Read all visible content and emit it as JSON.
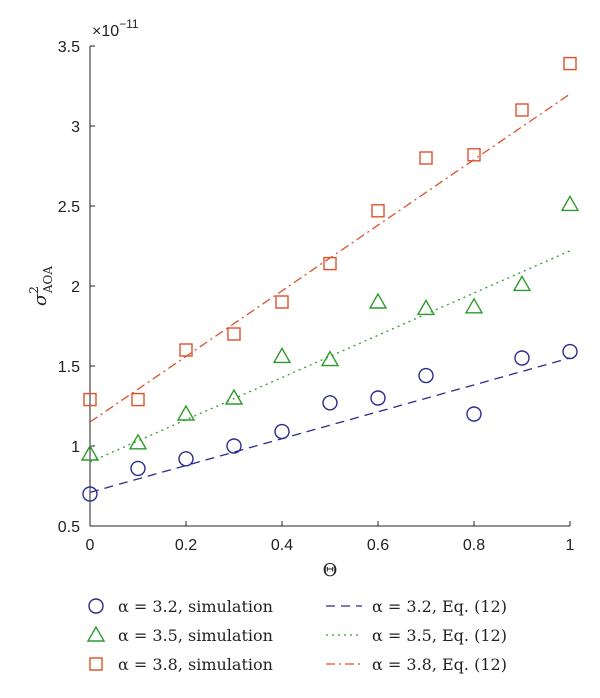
{
  "chart_data": {
    "type": "scatter",
    "multiplier": "×10",
    "multiplier_exp": "−11",
    "xlabel": "Θ",
    "ylabel_base": "σ",
    "ylabel_sup": "2",
    "ylabel_sub": "AOA",
    "xlim": [
      0,
      1
    ],
    "ylim": [
      0.5,
      3.5
    ],
    "xticks": [
      0,
      0.2,
      0.4,
      0.6,
      0.8,
      1
    ],
    "xtick_labels": [
      "0",
      "0.2",
      "0.4",
      "0.6",
      "0.8",
      "1"
    ],
    "yticks": [
      0.5,
      1,
      1.5,
      2,
      2.5,
      3,
      3.5
    ],
    "ytick_labels": [
      "0.5",
      "1",
      "1.5",
      "2",
      "2.5",
      "3",
      "3.5"
    ],
    "grid": false,
    "legend_position": "bottom",
    "series": [
      {
        "name": "α = 3.2, simulation",
        "kind": "markers",
        "marker": "circle",
        "color": "#2b2b8f",
        "x": [
          0,
          0.1,
          0.2,
          0.3,
          0.4,
          0.5,
          0.6,
          0.7,
          0.8,
          0.9,
          1.0
        ],
        "y": [
          0.7,
          0.86,
          0.92,
          1.0,
          1.09,
          1.27,
          1.3,
          1.44,
          1.2,
          1.55,
          1.59
        ]
      },
      {
        "name": "α = 3.5, simulation",
        "kind": "markers",
        "marker": "triangle",
        "color": "#2e9a2e",
        "x": [
          0,
          0.1,
          0.2,
          0.3,
          0.4,
          0.5,
          0.6,
          0.7,
          0.8,
          0.9,
          1.0
        ],
        "y": [
          0.95,
          1.02,
          1.2,
          1.3,
          1.56,
          1.54,
          1.9,
          1.86,
          1.87,
          2.01,
          2.51
        ]
      },
      {
        "name": "α = 3.8, simulation",
        "kind": "markers",
        "marker": "square",
        "color": "#e0502a",
        "x": [
          0,
          0.1,
          0.2,
          0.3,
          0.4,
          0.5,
          0.6,
          0.7,
          0.8,
          0.9,
          1.0
        ],
        "y": [
          1.29,
          1.29,
          1.6,
          1.7,
          1.9,
          2.14,
          2.47,
          2.8,
          2.82,
          3.1,
          3.39
        ]
      },
      {
        "name": "α = 3.2, Eq. (12)",
        "kind": "line",
        "dash": "dashed",
        "color": "#2b2b8f",
        "x": [
          0,
          1
        ],
        "y": [
          0.71,
          1.55
        ]
      },
      {
        "name": "α = 3.5, Eq. (12)",
        "kind": "line",
        "dash": "dotted",
        "color": "#2e9a2e",
        "x": [
          0,
          1
        ],
        "y": [
          0.9,
          2.22
        ]
      },
      {
        "name": "α = 3.8, Eq. (12)",
        "kind": "line",
        "dash": "dashdot",
        "color": "#e0502a",
        "x": [
          0,
          1
        ],
        "y": [
          1.15,
          3.2
        ]
      }
    ]
  }
}
